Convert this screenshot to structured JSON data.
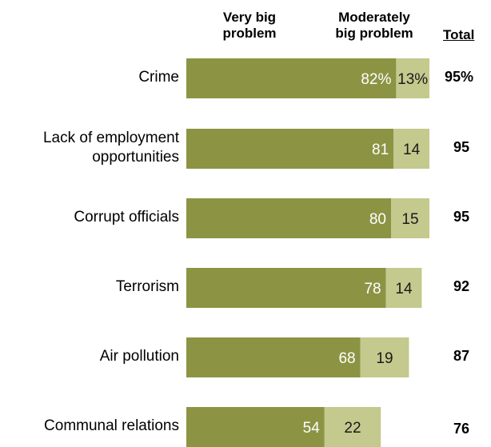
{
  "header": {
    "very_big": "Very big problem",
    "very_big_line1": "Very big",
    "very_big_line2": "problem",
    "moderately": "Moderately big problem",
    "moderately_line1": "Moderately",
    "moderately_line2": "big problem",
    "total": "Total"
  },
  "colors": {
    "very_big": "#8c9444",
    "moderately": "#c4c98d"
  },
  "chart_data": {
    "type": "bar",
    "orientation": "horizontal",
    "stacked": true,
    "categories": [
      "Crime",
      "Lack of employment opportunities",
      "Corrupt officials",
      "Terrorism",
      "Air pollution",
      "Communal relations"
    ],
    "category_lines": [
      [
        "Crime"
      ],
      [
        "Lack of employment",
        "opportunities"
      ],
      [
        "Corrupt officials"
      ],
      [
        "Terrorism"
      ],
      [
        "Air pollution"
      ],
      [
        "Communal relations"
      ]
    ],
    "series": [
      {
        "name": "Very big problem",
        "values": [
          82,
          81,
          80,
          78,
          68,
          54
        ]
      },
      {
        "name": "Moderately big problem",
        "values": [
          13,
          14,
          15,
          14,
          19,
          22
        ]
      }
    ],
    "value_labels": [
      [
        "82%",
        "81",
        "80",
        "78",
        "68",
        "54"
      ],
      [
        "13%",
        "14",
        "15",
        "14",
        "19",
        "22"
      ]
    ],
    "totals": [
      "95%",
      "95",
      "95",
      "92",
      "87",
      "76"
    ],
    "xlim": [
      0,
      100
    ]
  }
}
